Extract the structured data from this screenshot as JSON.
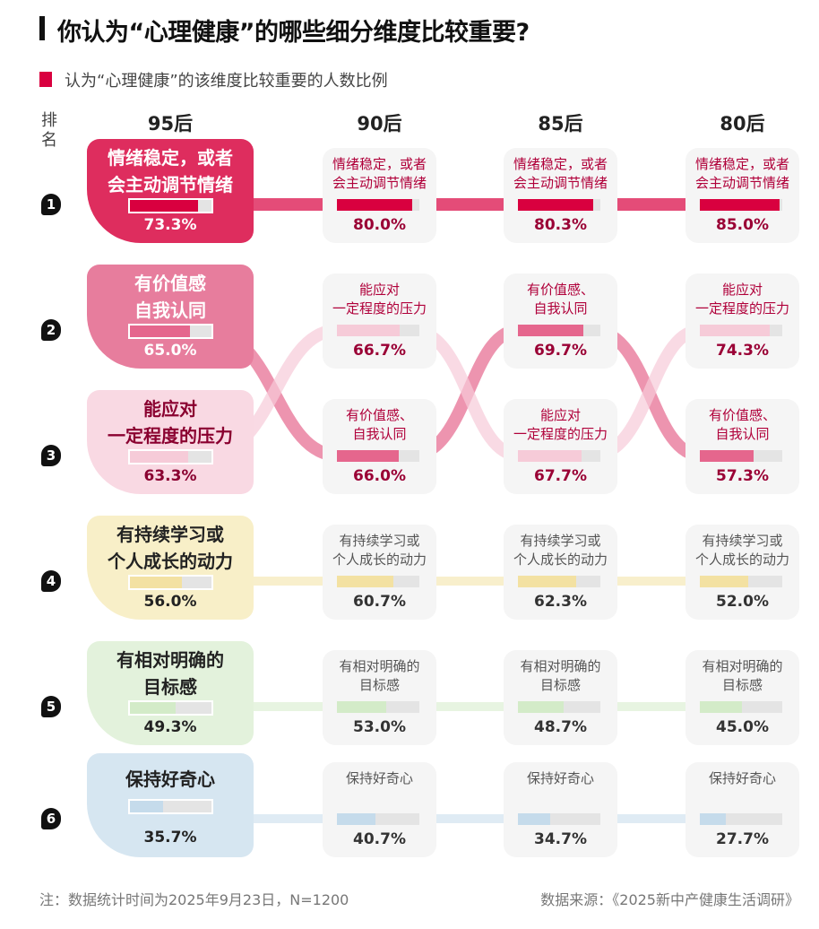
{
  "header": {
    "title": "你认为“心理健康”的哪些细分维度比较重要?",
    "legend": "认为“心理健康”的该维度比较重要的人数比例",
    "rank_label": "排名"
  },
  "footer": {
    "note": "注：数据统计时间为2025年9月23日，N=1200",
    "source": "数据来源：《2025新中产健康生活调研》"
  },
  "chart_data": {
    "type": "table",
    "title": "你认为“心理健康”的哪些细分维度比较重要?",
    "value_unit": "%",
    "ranks": [
      "1",
      "2",
      "3",
      "4",
      "5",
      "6"
    ],
    "categories": [
      {
        "big_lines": [
          "情绪稳定，或者",
          "会主动调节情绪"
        ],
        "lines": [
          "情绪稳定，或者",
          "会主动调节情绪"
        ],
        "fill": "#d9003f",
        "card": "#de2d5e",
        "big_text": "#ffffff",
        "text": "#b0003a"
      },
      {
        "big_lines": [
          "有价值感",
          "自我认同"
        ],
        "lines": [
          "有价值感、",
          "自我认同"
        ],
        "fill": "#e5668d",
        "card": "#e77d9d",
        "big_text": "#ffffff",
        "text": "#b0003a"
      },
      {
        "big_lines": [
          "能应对",
          "一定程度的压力"
        ],
        "lines": [
          "能应对",
          "一定程度的压力"
        ],
        "fill": "#f6cbd8",
        "card": "#f9d9e3",
        "big_text": "#8a0030",
        "text": "#b0003a"
      },
      {
        "big_lines": [
          "有持续学习或",
          "个人成长的动力"
        ],
        "lines": [
          "有持续学习或",
          "个人成长的动力"
        ],
        "fill": "#f3e1a2",
        "card": "#f8efc8",
        "big_text": "#222222",
        "text": "#555555"
      },
      {
        "big_lines": [
          "有相对明确的",
          "目标感"
        ],
        "lines": [
          "有相对明确的",
          "目标感"
        ],
        "fill": "#d3ebc8",
        "card": "#e3f2dc",
        "big_text": "#222222",
        "text": "#555555"
      },
      {
        "big_lines": [
          "保持好奇心"
        ],
        "lines": [
          "保持好奇心"
        ],
        "fill": "#c5dbeb",
        "card": "#d6e6f1",
        "big_text": "#222222",
        "text": "#555555"
      }
    ],
    "generations": [
      {
        "name": "95后",
        "ranking": [
          {
            "cat": 0,
            "value": "73.3%"
          },
          {
            "cat": 1,
            "value": "65.0%"
          },
          {
            "cat": 2,
            "value": "63.3%"
          },
          {
            "cat": 3,
            "value": "56.0%"
          },
          {
            "cat": 4,
            "value": "49.3%"
          },
          {
            "cat": 5,
            "value": "35.7%"
          }
        ]
      },
      {
        "name": "90后",
        "ranking": [
          {
            "cat": 0,
            "value": "80.0%"
          },
          {
            "cat": 2,
            "value": "66.7%"
          },
          {
            "cat": 1,
            "value": "66.0%"
          },
          {
            "cat": 3,
            "value": "60.7%"
          },
          {
            "cat": 4,
            "value": "53.0%"
          },
          {
            "cat": 5,
            "value": "40.7%"
          }
        ]
      },
      {
        "name": "85后",
        "ranking": [
          {
            "cat": 0,
            "value": "80.3%"
          },
          {
            "cat": 1,
            "value": "69.7%"
          },
          {
            "cat": 2,
            "value": "67.7%"
          },
          {
            "cat": 3,
            "value": "62.3%"
          },
          {
            "cat": 4,
            "value": "48.7%"
          },
          {
            "cat": 5,
            "value": "34.7%"
          }
        ]
      },
      {
        "name": "80后",
        "ranking": [
          {
            "cat": 0,
            "value": "85.0%"
          },
          {
            "cat": 2,
            "value": "74.3%"
          },
          {
            "cat": 1,
            "value": "57.3%"
          },
          {
            "cat": 3,
            "value": "52.0%"
          },
          {
            "cat": 4,
            "value": "45.0%"
          },
          {
            "cat": 5,
            "value": "27.7%"
          }
        ]
      }
    ]
  }
}
